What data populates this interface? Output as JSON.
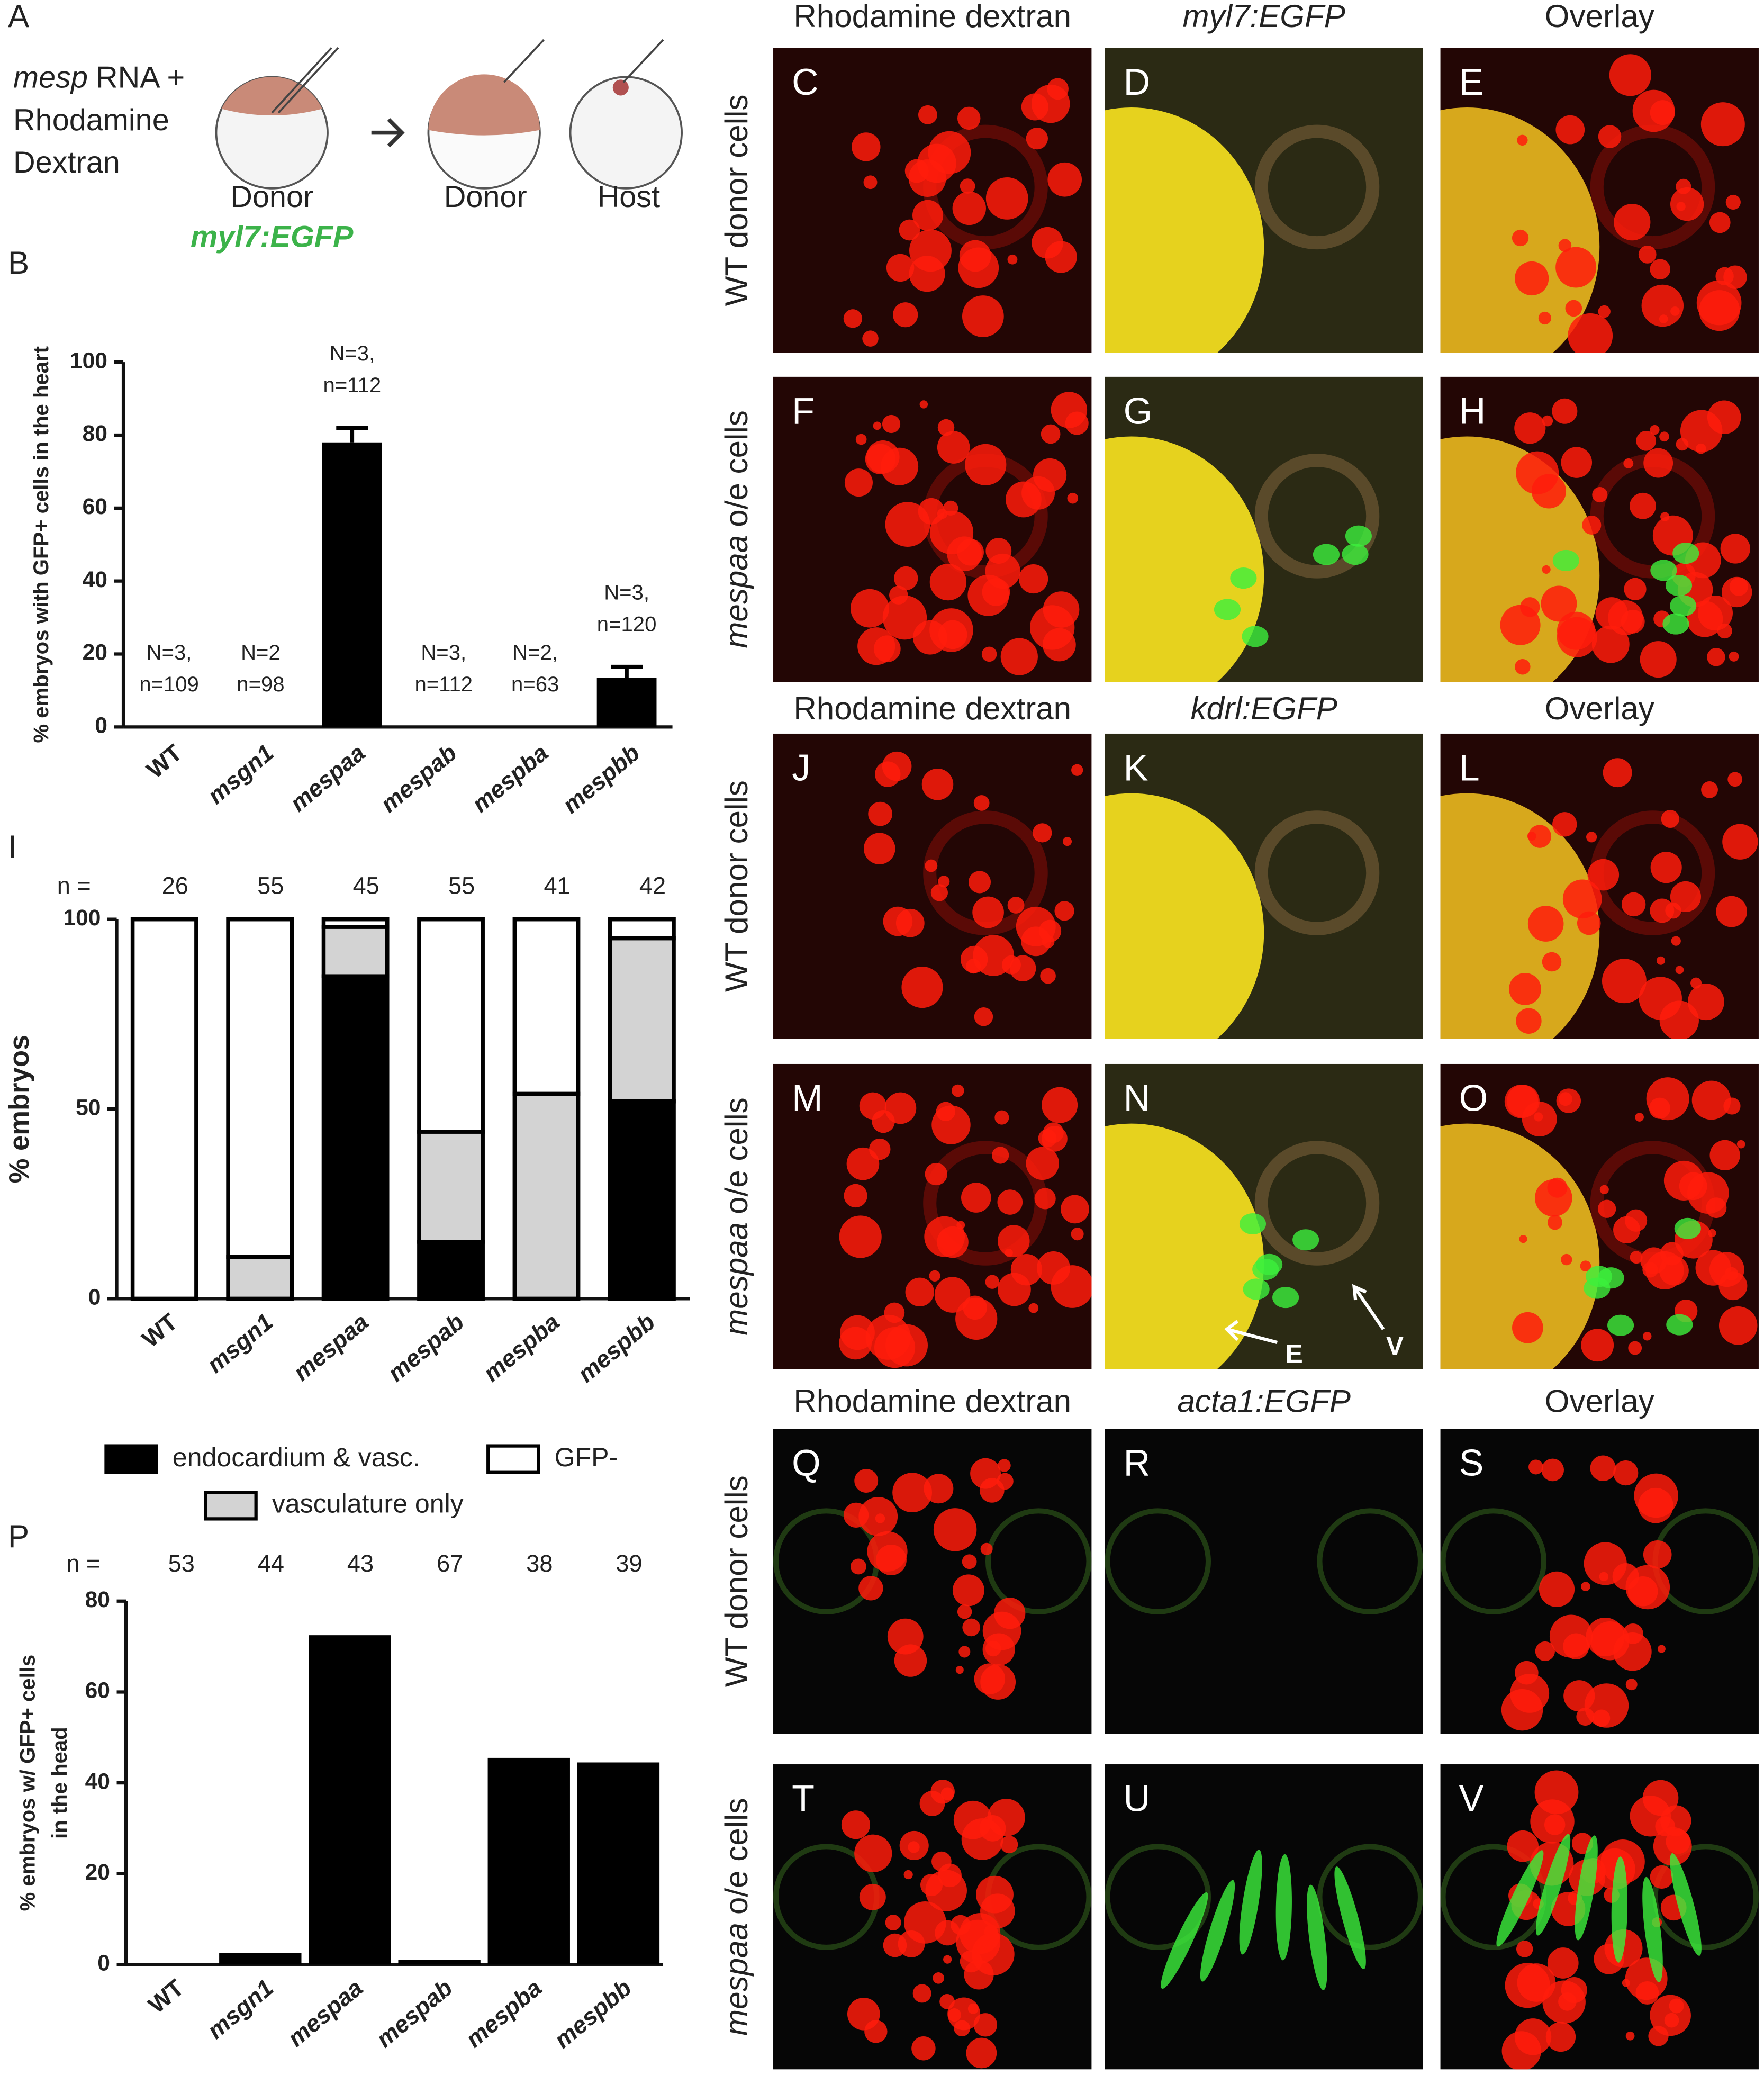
{
  "panel_a": {
    "letter": "A",
    "rna_italic": "mesp",
    "rna_rest": "RNA +",
    "line2": "Rhodamine",
    "line3": "Dextran",
    "donor1": "Donor",
    "donor_line": "myl7:EGFP",
    "donor2": "Donor",
    "host": "Host"
  },
  "chart_data": [
    {
      "type": "bar",
      "panel_label": "B",
      "y_label": "% embryos with GFP+ cells in the heart",
      "categories": [
        "WT",
        "msgn1",
        "mespaa",
        "mespab",
        "mespba",
        "mespbb"
      ],
      "values": [
        0,
        0,
        78,
        0,
        0,
        13.5
      ],
      "errors": [
        null,
        null,
        4,
        null,
        null,
        3
      ],
      "color": "#000000",
      "annotations": [
        [
          "N=3,",
          "n=109"
        ],
        [
          "N=2",
          "n=98"
        ],
        [
          "N=3,",
          "n=112"
        ],
        [
          "N=3,",
          "n=112"
        ],
        [
          "N=2,",
          "n=63"
        ],
        [
          "N=3,",
          "n=120"
        ]
      ],
      "ylim": [
        0,
        100
      ],
      "yticks": [
        0,
        20,
        40,
        60,
        80,
        100
      ]
    },
    {
      "type": "stacked_bar",
      "panel_label": "I",
      "y_label": "% embryos",
      "categories": [
        "WT",
        "msgn1",
        "mespaa",
        "mespab",
        "mespba",
        "mespbb"
      ],
      "n_label": "n =",
      "n_values": [
        26,
        55,
        45,
        55,
        41,
        42
      ],
      "series": [
        {
          "name": "endocardium & vasc.",
          "color": "#000000",
          "values": [
            0,
            0,
            85,
            15,
            0,
            52
          ]
        },
        {
          "name": "vasculature only",
          "color": "#d3d3d3",
          "values": [
            0,
            11,
            13,
            29,
            54,
            43
          ]
        },
        {
          "name": "GFP-",
          "color": "#ffffff",
          "values": [
            100,
            89,
            2,
            56,
            46,
            5
          ]
        }
      ],
      "ylim": [
        0,
        100
      ],
      "yticks": [
        0,
        50,
        100
      ]
    },
    {
      "type": "bar",
      "panel_label": "P",
      "y_label": [
        "% embryos w/ GFP+ cells",
        "in the head"
      ],
      "categories": [
        "WT",
        "msgn1",
        "mespaa",
        "mespab",
        "mespba",
        "mespbb"
      ],
      "n_label": "n =",
      "n_values": [
        53,
        44,
        43,
        67,
        38,
        39
      ],
      "values": [
        0,
        2.5,
        72.5,
        1,
        45.5,
        44.5
      ],
      "color": "#000000",
      "ylim": [
        0,
        80
      ],
      "yticks": [
        0,
        20,
        40,
        60,
        80
      ]
    }
  ],
  "micrographs": {
    "groups": [
      {
        "headers": [
          "Rhodamine dextran",
          "myl7:EGFP",
          "Overlay"
        ],
        "header_italic": [
          false,
          true,
          false
        ],
        "rows": [
          {
            "text": "WT donor cells",
            "letters": [
              "C",
              "D",
              "E"
            ]
          },
          {
            "italic": "mespaa",
            "text": "o/e cells",
            "letters": [
              "F",
              "G",
              "H"
            ]
          }
        ]
      },
      {
        "headers": [
          "Rhodamine dextran",
          "kdrl:EGFP",
          "Overlay"
        ],
        "header_italic": [
          false,
          true,
          false
        ],
        "rows": [
          {
            "text": "WT donor cells",
            "letters": [
              "J",
              "K",
              "L"
            ]
          },
          {
            "italic": "mespaa",
            "text": "o/e cells",
            "letters": [
              "M",
              "N",
              "O"
            ]
          }
        ],
        "arrows": [
          "E",
          "V"
        ]
      },
      {
        "headers": [
          "Rhodamine dextran",
          "acta1:EGFP",
          "Overlay"
        ],
        "header_italic": [
          false,
          true,
          false
        ],
        "rows": [
          {
            "text": "WT donor cells",
            "letters": [
              "Q",
              "R",
              "S"
            ]
          },
          {
            "italic": "mespaa",
            "text": "o/e cells",
            "letters": [
              "T",
              "U",
              "V"
            ]
          }
        ]
      }
    ]
  }
}
